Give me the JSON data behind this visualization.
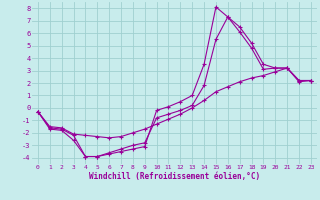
{
  "xlabel": "Windchill (Refroidissement éolien,°C)",
  "bg_color": "#c8ecec",
  "grid_color": "#a0d0d0",
  "line_color": "#990099",
  "xlim": [
    -0.5,
    23.5
  ],
  "ylim": [
    -4.5,
    8.5
  ],
  "xticks": [
    0,
    1,
    2,
    3,
    4,
    5,
    6,
    7,
    8,
    9,
    10,
    11,
    12,
    13,
    14,
    15,
    16,
    17,
    18,
    19,
    20,
    21,
    22,
    23
  ],
  "yticks": [
    -4,
    -3,
    -2,
    -1,
    0,
    1,
    2,
    3,
    4,
    5,
    6,
    7,
    8
  ],
  "line1_x": [
    0,
    1,
    2,
    3,
    4,
    5,
    6,
    7,
    8,
    9,
    10,
    11,
    12,
    13,
    14,
    15,
    16,
    17,
    18,
    19,
    20,
    21,
    22,
    23
  ],
  "line1_y": [
    -0.3,
    -1.7,
    -1.8,
    -2.6,
    -3.9,
    -3.9,
    -3.7,
    -3.5,
    -3.3,
    -3.1,
    -0.2,
    0.1,
    0.5,
    1.0,
    3.5,
    8.1,
    7.3,
    6.1,
    4.8,
    3.1,
    3.2,
    3.2,
    2.1,
    2.2
  ],
  "line2_x": [
    0,
    1,
    2,
    3,
    4,
    5,
    6,
    7,
    8,
    9,
    10,
    11,
    12,
    13,
    14,
    15,
    16,
    17,
    18,
    19,
    20,
    21,
    22,
    23
  ],
  "line2_y": [
    -0.3,
    -1.6,
    -1.7,
    -2.2,
    -3.9,
    -3.9,
    -3.6,
    -3.3,
    -3.0,
    -2.8,
    -0.8,
    -0.5,
    -0.2,
    0.2,
    1.8,
    5.5,
    7.3,
    6.5,
    5.2,
    3.5,
    3.2,
    3.2,
    2.2,
    2.2
  ],
  "line3_x": [
    0,
    1,
    2,
    3,
    4,
    5,
    6,
    7,
    8,
    9,
    10,
    11,
    12,
    13,
    14,
    15,
    16,
    17,
    18,
    19,
    20,
    21,
    22,
    23
  ],
  "line3_y": [
    -0.3,
    -1.5,
    -1.6,
    -2.1,
    -2.2,
    -2.3,
    -2.4,
    -2.3,
    -2.0,
    -1.7,
    -1.3,
    -0.9,
    -0.5,
    0.0,
    0.6,
    1.3,
    1.7,
    2.1,
    2.4,
    2.6,
    2.9,
    3.2,
    2.2,
    2.2
  ]
}
